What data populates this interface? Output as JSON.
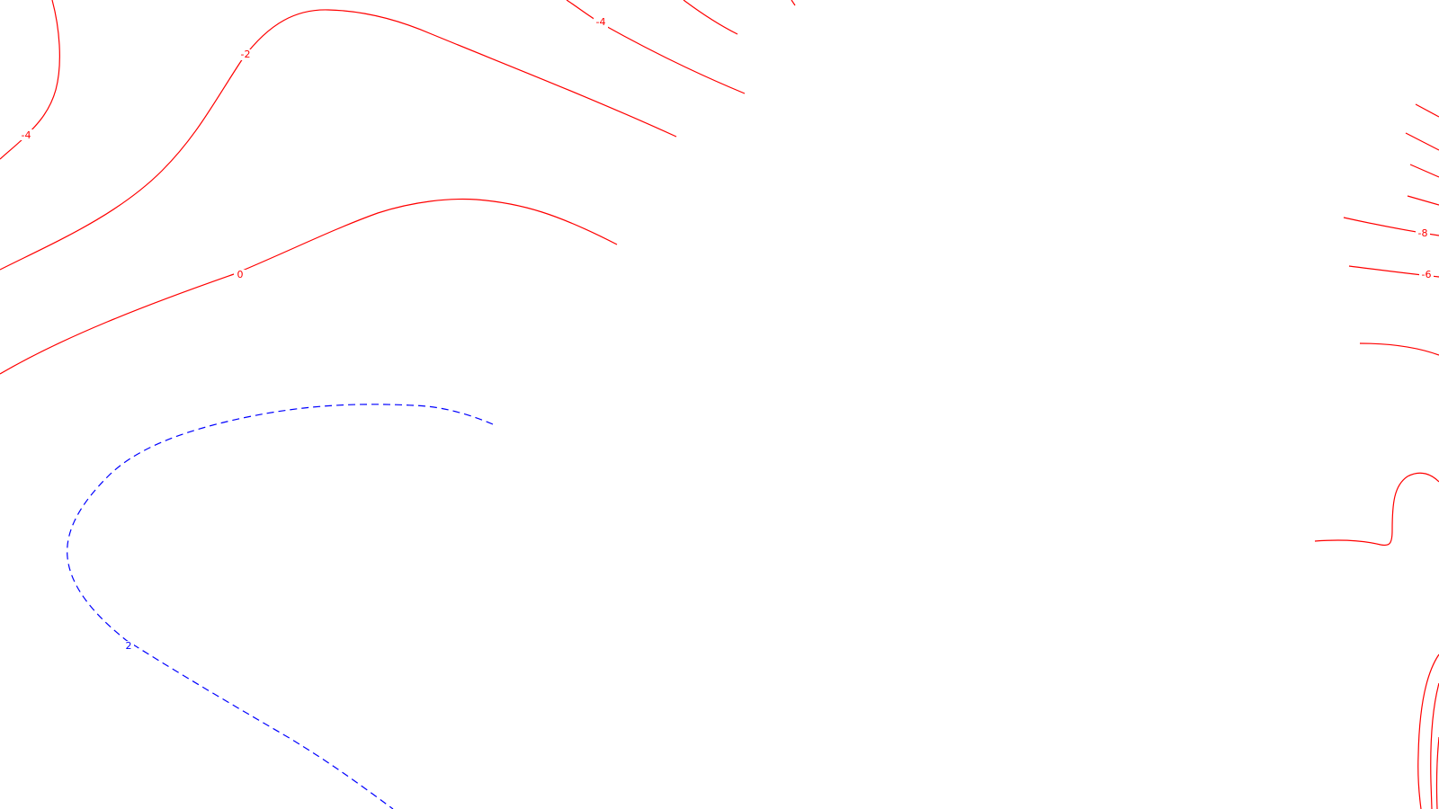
{
  "colors": {
    "negative": "#ff0000",
    "positive": "#0000ff",
    "background": "#ffffff"
  },
  "labels": {
    "m4_left": "-4",
    "m2": "-2",
    "m4_top": "-4",
    "zero": "0",
    "pos2": "2",
    "m8": "-8",
    "m6": "-6"
  }
}
